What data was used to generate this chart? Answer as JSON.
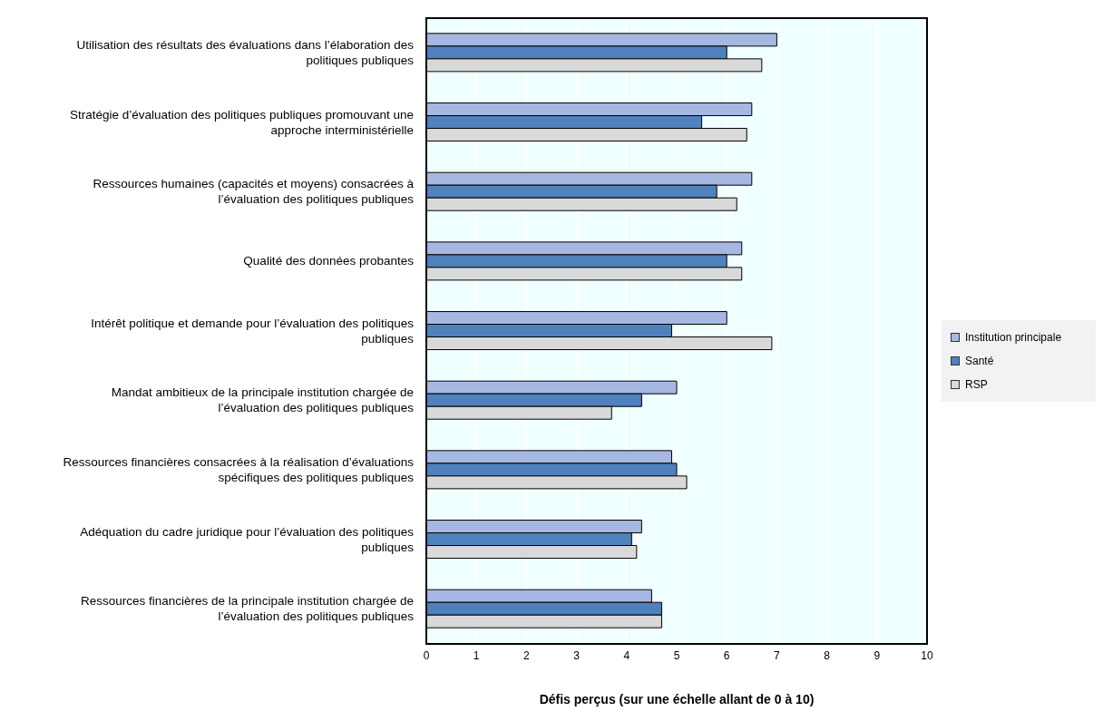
{
  "chart_data": {
    "type": "bar",
    "orientation": "horizontal",
    "xlabel": "Défis perçus (sur une échelle allant de 0 à 10)",
    "categories": [
      "Utilisation des résultats des évaluations dans l’élaboration des politiques publiques",
      "Stratégie d’évaluation des politiques publiques promouvant une approche interministérielle",
      "Ressources humaines (capacités et moyens) consacrées à l’évaluation des politiques publiques",
      "Qualité des données probantes",
      "Intérêt politique et demande pour l’évaluation des politiques publiques",
      "Mandat ambitieux de la principale institution chargée de l’évaluation des politiques publiques",
      "Ressources financières consacrées à la réalisation d’évaluations spécifiques des politiques publiques",
      "Adéquation du cadre juridique pour l’évaluation des politiques publiques",
      "Ressources financières de la principale institution chargée de l’évaluation des politiques publiques"
    ],
    "series": [
      {
        "name": "Institution principale",
        "color": "#a6b8e2",
        "values": [
          7.0,
          6.5,
          6.5,
          6.3,
          6.0,
          5.0,
          4.9,
          4.3,
          4.5
        ]
      },
      {
        "name": "Santé",
        "color": "#4f81bd",
        "values": [
          6.0,
          5.5,
          5.8,
          6.0,
          4.9,
          4.3,
          5.0,
          4.1,
          4.7
        ]
      },
      {
        "name": "RSP",
        "color": "#d9d9d9",
        "values": [
          6.7,
          6.4,
          6.2,
          6.3,
          6.9,
          3.7,
          5.2,
          4.2,
          4.7
        ]
      }
    ],
    "xlim": [
      0,
      10
    ],
    "xticks": [
      0,
      1,
      2,
      3,
      4,
      5,
      6,
      7,
      8,
      9,
      10
    ],
    "grid": "x",
    "legend": "right"
  }
}
